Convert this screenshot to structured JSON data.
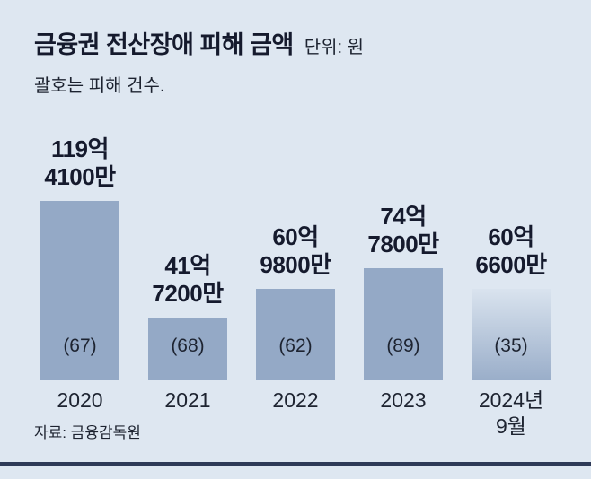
{
  "header": {
    "title": "금융권 전산장애 피해 금액",
    "unit_label": "단위: 원",
    "subtitle": "괄호는 피해 건수."
  },
  "footer": {
    "source": "자료: 금융감독원"
  },
  "colors": {
    "background": "#dee7f1",
    "bar": "#94a9c6",
    "bar_gradient_top": "rgba(148,169,198,0.06)",
    "bar_gradient_bottom": "rgba(148,169,198,0.92)",
    "title_text": "#151a2d",
    "body_text": "#1d2330",
    "bottom_rule": "#2e3a57"
  },
  "chart_data": {
    "type": "bar",
    "title": "금융권 전산장애 피해 금액",
    "unit": "원",
    "note": "괄호는 피해 건수.",
    "categories": [
      "2020",
      "2021",
      "2022",
      "2023",
      "2024년 9월"
    ],
    "values_eok": [
      119.41,
      41.72,
      60.98,
      74.78,
      60.66
    ],
    "values_won": [
      11941000000,
      4172000000,
      6098000000,
      7478000000,
      6066000000
    ],
    "counts": [
      67,
      68,
      62,
      89,
      35
    ],
    "ylim_eok": [
      0,
      120
    ],
    "grid": false,
    "legend": "none",
    "bars": [
      {
        "category_lines": [
          "2020"
        ],
        "value_eok": 119.41,
        "value_label_lines": [
          "119억",
          "4100만"
        ],
        "count": 67,
        "count_label": "(67)",
        "gradient": false
      },
      {
        "category_lines": [
          "2021"
        ],
        "value_eok": 41.72,
        "value_label_lines": [
          "41억",
          "7200만"
        ],
        "count": 68,
        "count_label": "(68)",
        "gradient": false
      },
      {
        "category_lines": [
          "2022"
        ],
        "value_eok": 60.98,
        "value_label_lines": [
          "60억",
          "9800만"
        ],
        "count": 62,
        "count_label": "(62)",
        "gradient": false
      },
      {
        "category_lines": [
          "2023"
        ],
        "value_eok": 74.78,
        "value_label_lines": [
          "74억",
          "7800만"
        ],
        "count": 89,
        "count_label": "(89)",
        "gradient": false
      },
      {
        "category_lines": [
          "2024년",
          "9월"
        ],
        "value_eok": 60.66,
        "value_label_lines": [
          "60억",
          "6600만"
        ],
        "count": 35,
        "count_label": "(35)",
        "gradient": true
      }
    ]
  }
}
